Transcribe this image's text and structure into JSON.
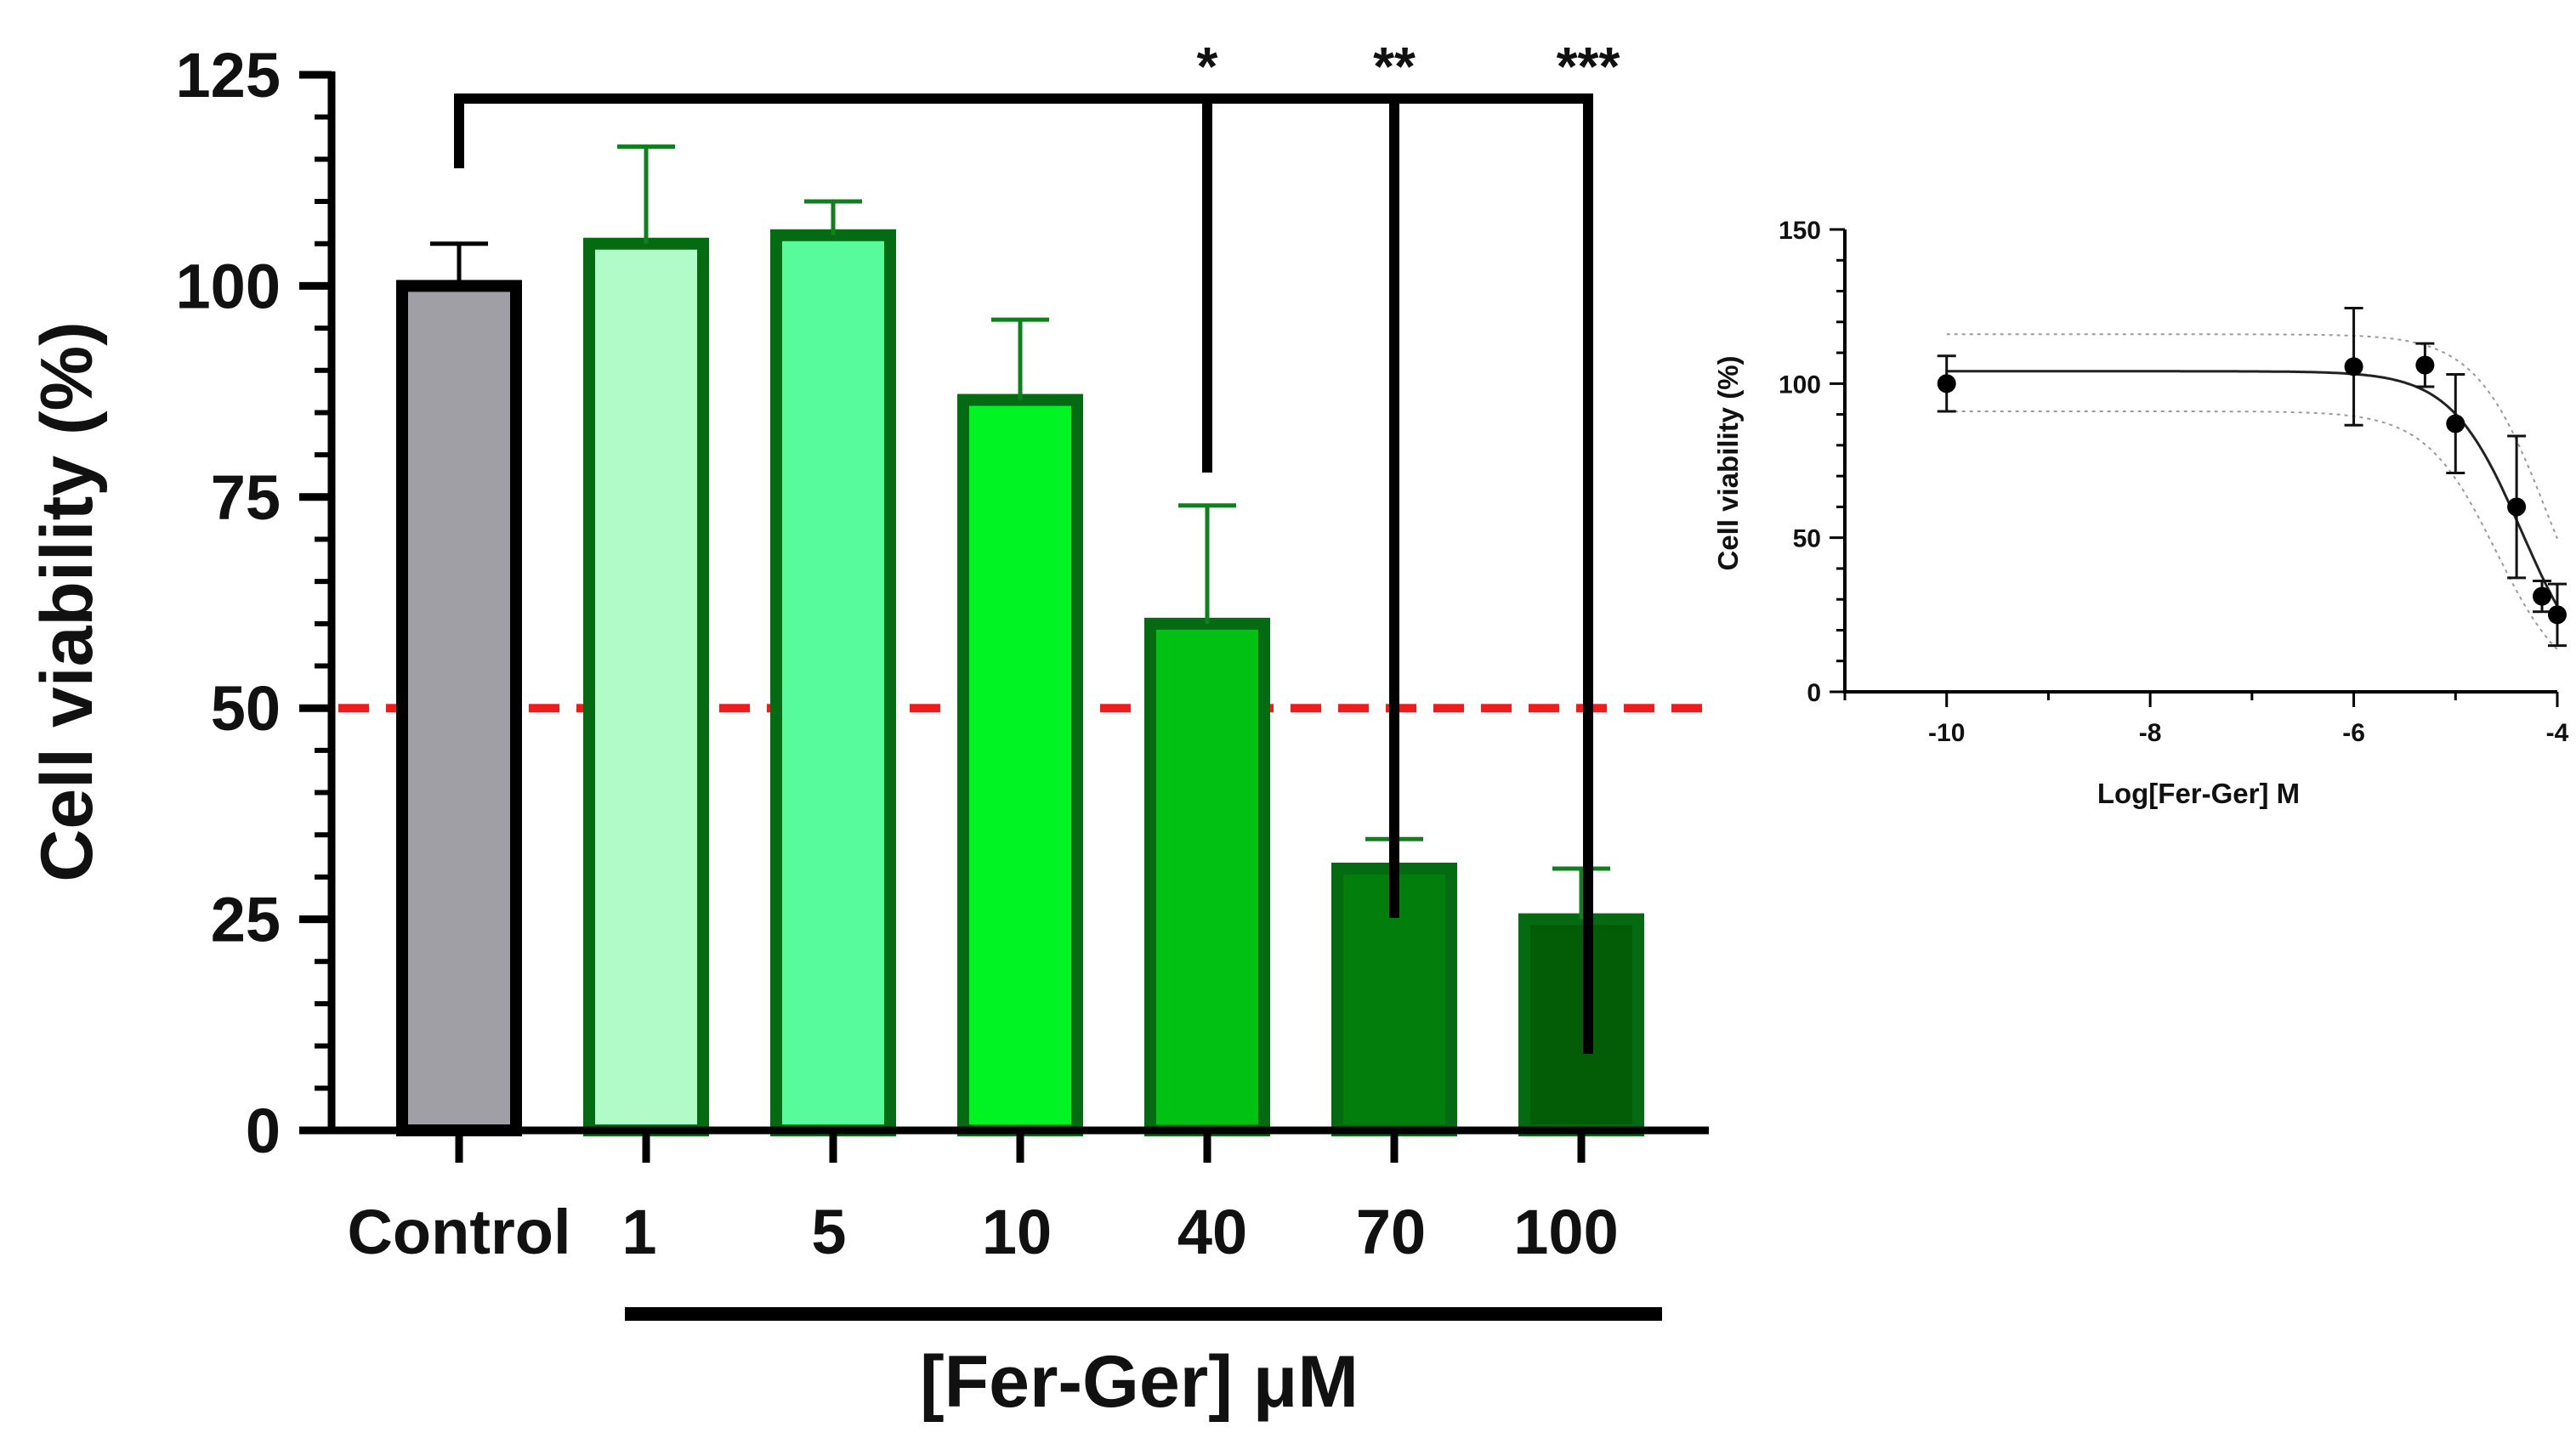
{
  "chart_data": [
    {
      "type": "bar",
      "title": "",
      "ylabel": "Cell viability (%)",
      "xlabel": "[Fer-Ger] μM",
      "ylim": [
        0,
        125
      ],
      "yticks": [
        "0",
        "25",
        "50",
        "75",
        "100",
        "125"
      ],
      "categories": [
        "Control",
        "1",
        "5",
        "10",
        "40",
        "70",
        "100"
      ],
      "values": [
        100,
        105,
        106,
        86.5,
        60,
        31,
        25
      ],
      "errors": [
        5,
        11.5,
        4,
        9.5,
        14,
        3.5,
        6
      ],
      "colors": [
        "#a09fa6",
        "#b0fbc8",
        "#58fb9c",
        "#00f323",
        "#01c212",
        "#027e0c",
        "#035c06"
      ],
      "threshold": {
        "value": 50,
        "color": "#ef1c1c"
      },
      "significance": [
        {
          "category": "40",
          "label": "*"
        },
        {
          "category": "70",
          "label": "**"
        },
        {
          "category": "100",
          "label": "***"
        }
      ]
    },
    {
      "type": "scatter",
      "title": "",
      "xlabel": "Log[Fer-Ger] M",
      "ylabel": "Cell viability (%)",
      "xlim": [
        -11,
        -4
      ],
      "ylim": [
        0,
        150
      ],
      "xticks": [
        "-10",
        "-8",
        "-6",
        "-4"
      ],
      "yticks": [
        "0",
        "50",
        "100",
        "150"
      ],
      "points": [
        {
          "x": -10,
          "y": 100,
          "err": 9
        },
        {
          "x": -6,
          "y": 105.5,
          "err": 19
        },
        {
          "x": -5.3,
          "y": 106,
          "err": 7
        },
        {
          "x": -5,
          "y": 87,
          "err": 16
        },
        {
          "x": -4.4,
          "y": 60,
          "err": 23
        },
        {
          "x": -4.15,
          "y": 31,
          "err": 5
        },
        {
          "x": -4,
          "y": 25,
          "err": 10
        }
      ],
      "fit": {
        "top": 104,
        "bottom": 0,
        "logIC50": -4.35,
        "hill": 1.25
      },
      "ci_band": {
        "upper_top": 116,
        "lower_top": 91,
        "upper_shift": 0.25,
        "lower_shift": -0.25
      }
    }
  ]
}
